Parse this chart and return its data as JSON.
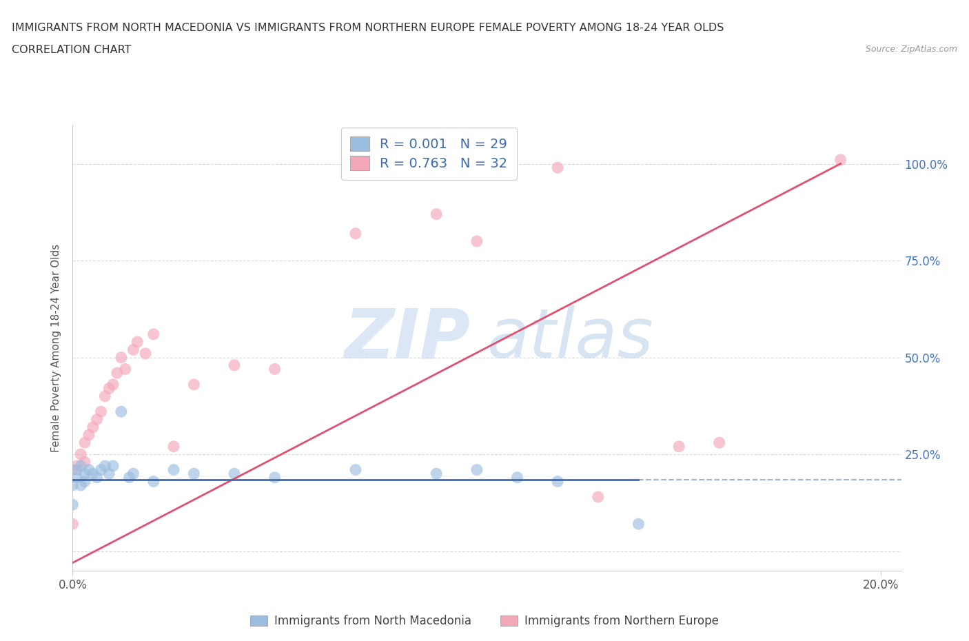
{
  "title_line1": "IMMIGRANTS FROM NORTH MACEDONIA VS IMMIGRANTS FROM NORTHERN EUROPE FEMALE POVERTY AMONG 18-24 YEAR OLDS",
  "title_line2": "CORRELATION CHART",
  "source_text": "Source: ZipAtlas.com",
  "ylabel": "Female Poverty Among 18-24 Year Olds",
  "watermark": "ZIPatlas",
  "legend_entries": [
    {
      "label": "Immigrants from North Macedonia",
      "color": "#aac4e8"
    },
    {
      "label": "Immigrants from Northern Europe",
      "color": "#f4a7b9"
    }
  ],
  "xlim": [
    0.0,
    0.205
  ],
  "ylim": [
    -0.05,
    1.1
  ],
  "xtick_positions": [
    0.0,
    0.2
  ],
  "xtick_labels": [
    "0.0%",
    "20.0%"
  ],
  "ytick_positions": [
    0.0,
    0.25,
    0.5,
    0.75,
    1.0
  ],
  "right_ytick_positions": [
    0.25,
    0.5,
    0.75,
    1.0
  ],
  "right_ytick_labels": [
    "25.0%",
    "50.0%",
    "75.0%",
    "100.0%"
  ],
  "blue_scatter_x": [
    0.0,
    0.0,
    0.001,
    0.001,
    0.002,
    0.002,
    0.003,
    0.003,
    0.004,
    0.005,
    0.006,
    0.007,
    0.008,
    0.009,
    0.01,
    0.012,
    0.014,
    0.015,
    0.02,
    0.025,
    0.03,
    0.04,
    0.05,
    0.07,
    0.09,
    0.1,
    0.11,
    0.12,
    0.14
  ],
  "blue_scatter_y": [
    0.12,
    0.17,
    0.19,
    0.21,
    0.17,
    0.22,
    0.18,
    0.2,
    0.21,
    0.2,
    0.19,
    0.21,
    0.22,
    0.2,
    0.22,
    0.36,
    0.19,
    0.2,
    0.18,
    0.21,
    0.2,
    0.2,
    0.19,
    0.21,
    0.2,
    0.21,
    0.19,
    0.18,
    0.07
  ],
  "pink_scatter_x": [
    0.0,
    0.0,
    0.001,
    0.002,
    0.003,
    0.003,
    0.004,
    0.005,
    0.006,
    0.007,
    0.008,
    0.009,
    0.01,
    0.011,
    0.012,
    0.013,
    0.015,
    0.016,
    0.018,
    0.02,
    0.025,
    0.03,
    0.04,
    0.05,
    0.07,
    0.09,
    0.1,
    0.12,
    0.13,
    0.15,
    0.16,
    0.19
  ],
  "pink_scatter_y": [
    0.07,
    0.21,
    0.22,
    0.25,
    0.23,
    0.28,
    0.3,
    0.32,
    0.34,
    0.36,
    0.4,
    0.42,
    0.43,
    0.46,
    0.5,
    0.47,
    0.52,
    0.54,
    0.51,
    0.56,
    0.27,
    0.43,
    0.48,
    0.47,
    0.82,
    0.87,
    0.8,
    0.99,
    0.14,
    0.27,
    0.28,
    1.01
  ],
  "blue_line_x": [
    0.0,
    0.14
  ],
  "blue_line_y": [
    0.185,
    0.185
  ],
  "pink_line_x": [
    0.0,
    0.19
  ],
  "pink_line_y": [
    -0.03,
    1.0
  ],
  "blue_scatter_color": "#9bbde0",
  "pink_scatter_color": "#f4a7b9",
  "blue_line_color": "#3d6ab5",
  "pink_line_color": "#e05070",
  "background_color": "#ffffff",
  "grid_color": "#d8d8d8",
  "title_color": "#333333",
  "axis_color": "#cccccc",
  "r_n_color": "#3d6ab5"
}
